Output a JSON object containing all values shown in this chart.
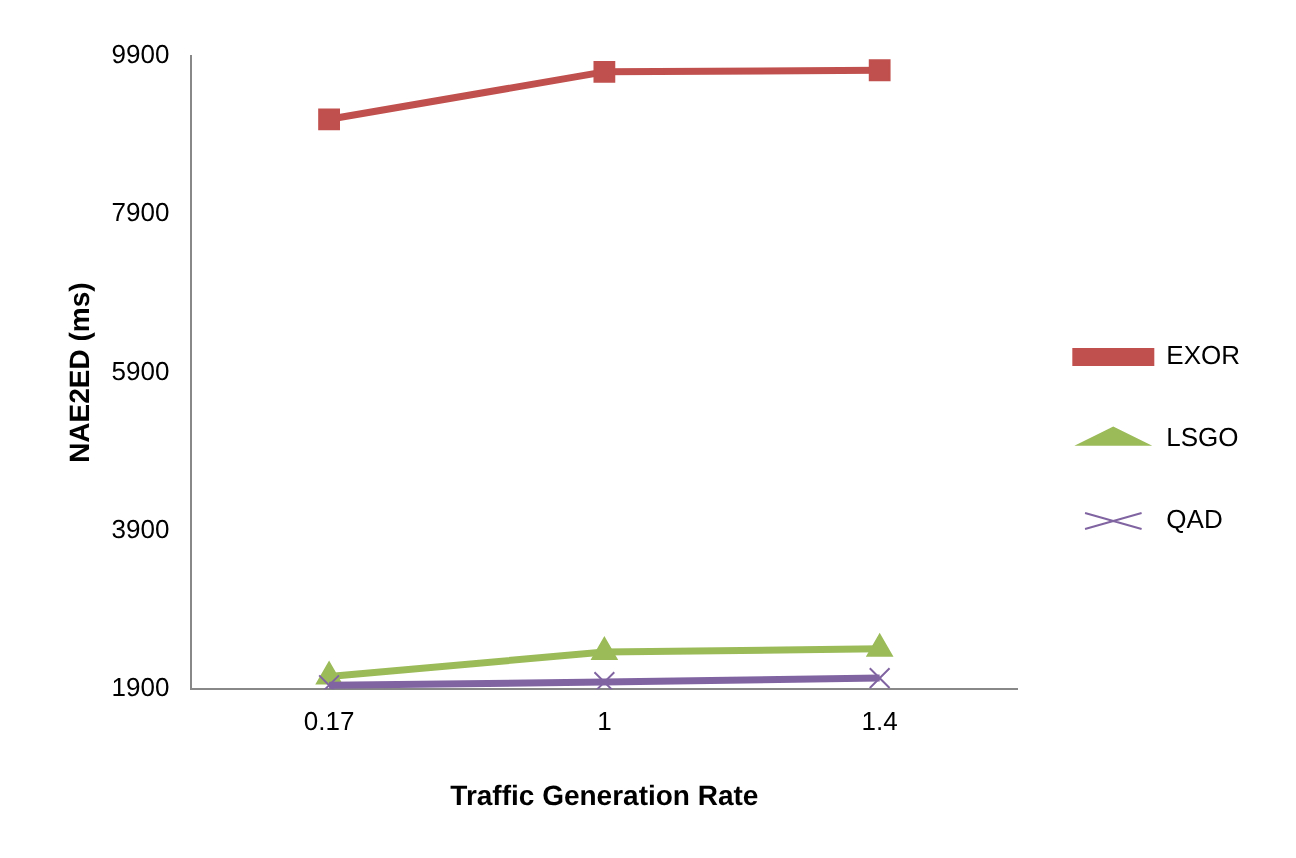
{
  "chart_data": {
    "type": "line",
    "xlabel": "Traffic Generation Rate",
    "ylabel": "NAE2ED (ms)",
    "categories": [
      "0.17",
      "1",
      "1.4"
    ],
    "series": [
      {
        "name": "EXOR",
        "color": "#c0504d",
        "marker": "square",
        "values": [
          9100,
          9700,
          9720
        ]
      },
      {
        "name": "LSGO",
        "color": "#9bbb59",
        "marker": "triangle",
        "values": [
          2060,
          2370,
          2410
        ]
      },
      {
        "name": "QAD",
        "color": "#8064a2",
        "marker": "cross",
        "values": [
          1950,
          1990,
          2040
        ]
      }
    ],
    "ylim": [
      1900,
      9900
    ],
    "yticks": [
      1900,
      3900,
      5900,
      7900,
      9900
    ],
    "grid": false,
    "legend": "right"
  }
}
